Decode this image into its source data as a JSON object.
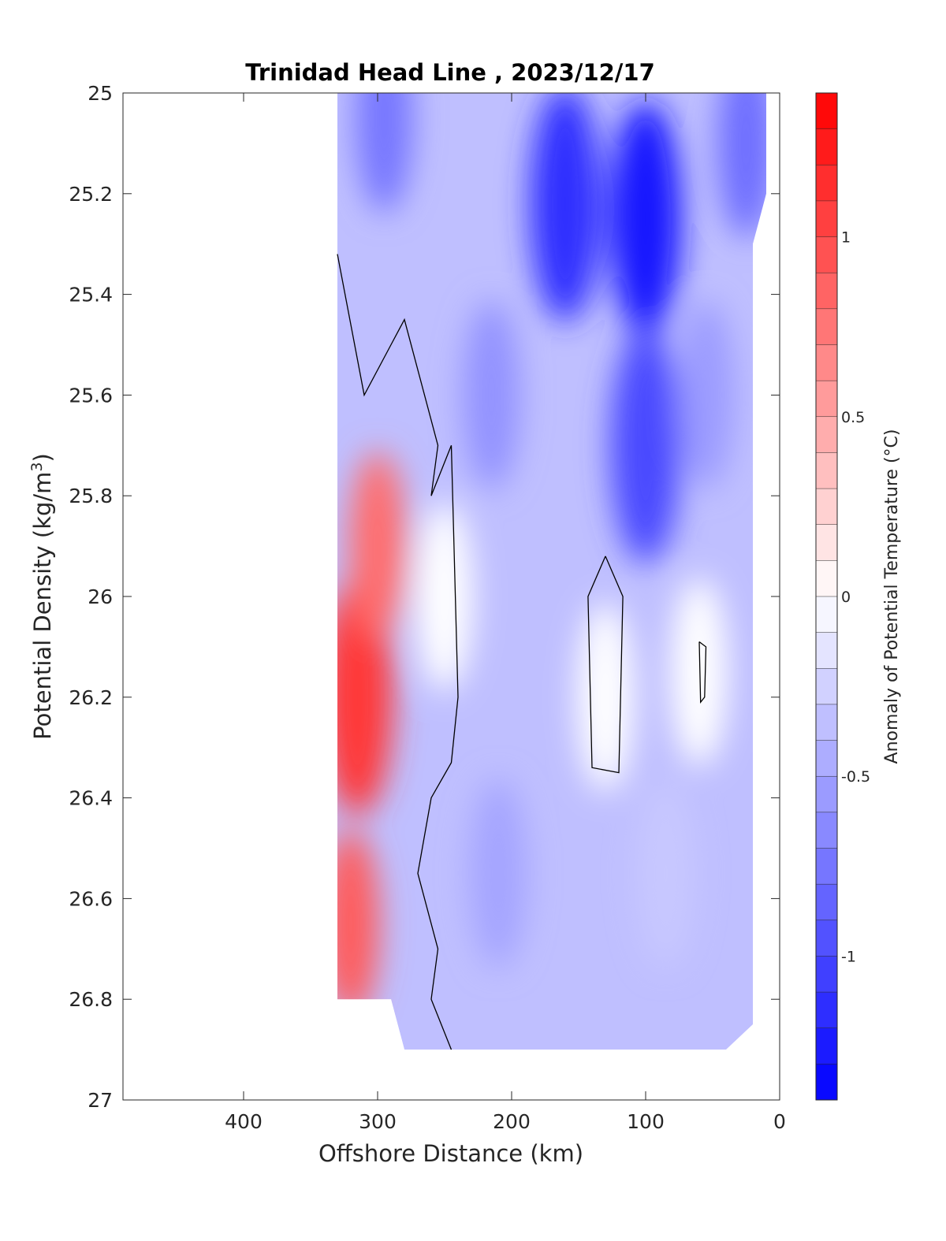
{
  "chart_data": {
    "type": "filled-contour",
    "title": "Trinidad Head Line , 2023/12/17",
    "xlabel": "Offshore Distance (km)",
    "ylabel_main": "Potential Density (kg/m",
    "ylabel_sup": "3",
    "ylabel_close": ")",
    "x_reversed": true,
    "xlim": [
      490,
      0
    ],
    "ylim": [
      25,
      27
    ],
    "y_reversed": true,
    "x_ticks": [
      400,
      300,
      200,
      100,
      0
    ],
    "x_tick_labels": [
      "400",
      "300",
      "200",
      "100",
      "0"
    ],
    "y_ticks": [
      25,
      25.2,
      25.4,
      25.6,
      25.8,
      26,
      26.2,
      26.4,
      26.6,
      26.8,
      27
    ],
    "y_tick_labels": [
      "25",
      "25.2",
      "25.4",
      "25.6",
      "25.8",
      "26",
      "26.2",
      "26.4",
      "26.6",
      "26.8",
      "27"
    ],
    "colorbar": {
      "label": "Anomaly of Potential Temperature (°C)",
      "range": [
        -1.4,
        1.4
      ],
      "ticks": [
        1,
        0.5,
        0,
        -0.5,
        -1
      ],
      "tick_labels": [
        "1",
        "0.5",
        "0",
        "-0.5",
        "-1"
      ],
      "steps": 28,
      "neg_color": "#0000ff",
      "pos_color": "#ff0000",
      "mid_color": "#ffffff"
    },
    "data_extent": {
      "x_offshore_edge": 330,
      "x_shore_edge": 10,
      "sigma_top": 25,
      "sigma_bottom_offshore": 26.8,
      "sigma_bottom": 26.9
    },
    "features": [
      {
        "name": "warm-core",
        "x": 315,
        "sigma": 26.2,
        "anomaly": 1.1
      },
      {
        "name": "warm-upper-lobe",
        "x": 300,
        "sigma": 25.9,
        "anomaly": 0.8
      },
      {
        "name": "warm-deep",
        "x": 320,
        "sigma": 26.65,
        "anomaly": 0.9
      },
      {
        "name": "cold-core-nearshore",
        "x": 100,
        "sigma": 25.25,
        "anomaly": -1.3
      },
      {
        "name": "cold-core-mid",
        "x": 160,
        "sigma": 25.22,
        "anomaly": -1.15
      },
      {
        "name": "cold-tongue",
        "x": 100,
        "sigma": 25.7,
        "anomaly": -1.0
      },
      {
        "name": "cold-upper-offshore",
        "x": 295,
        "sigma": 25.05,
        "anomaly": -0.75
      },
      {
        "name": "cold-column",
        "x": 215,
        "sigma": 25.6,
        "anomaly": -0.6
      },
      {
        "name": "cold-column-deep",
        "x": 210,
        "sigma": 26.55,
        "anomaly": -0.5
      },
      {
        "name": "cold-shore-edge",
        "x": 25,
        "sigma": 25.1,
        "anomaly": -0.8
      },
      {
        "name": "cold-shore-mid",
        "x": 55,
        "sigma": 25.6,
        "anomaly": -0.55
      },
      {
        "name": "cold-lower-mid",
        "x": 85,
        "sigma": 26.55,
        "anomaly": -0.3
      },
      {
        "name": "neutral-band",
        "x": 250,
        "sigma": 26.0,
        "anomaly": 0.0
      },
      {
        "name": "neutral-pocket",
        "x": 130,
        "sigma": 26.2,
        "anomaly": 0.0
      },
      {
        "name": "neutral-pocket-shore",
        "x": 60,
        "sigma": 26.15,
        "anomaly": 0.0
      }
    ],
    "zero_contours": [
      {
        "name": "zero-contour-main",
        "points": [
          [
            330,
            25.32
          ],
          [
            310,
            25.6
          ],
          [
            290,
            25.5
          ],
          [
            280,
            25.45
          ],
          [
            255,
            25.7
          ],
          [
            260,
            25.8
          ],
          [
            245,
            25.7
          ],
          [
            240,
            26.2
          ],
          [
            245,
            26.33
          ],
          [
            260,
            26.4
          ],
          [
            270,
            26.55
          ],
          [
            255,
            26.7
          ],
          [
            260,
            26.8
          ],
          [
            245,
            26.9
          ]
        ]
      },
      {
        "name": "zero-contour-pocket",
        "points": [
          [
            130,
            25.92
          ],
          [
            117,
            26.0
          ],
          [
            120,
            26.35
          ],
          [
            140,
            26.34
          ],
          [
            143,
            26.0
          ],
          [
            130,
            25.92
          ]
        ]
      },
      {
        "name": "zero-contour-shore",
        "points": [
          [
            60,
            26.09
          ],
          [
            55,
            26.1
          ],
          [
            56,
            26.2
          ],
          [
            59,
            26.21
          ],
          [
            60,
            26.09
          ]
        ]
      }
    ]
  }
}
